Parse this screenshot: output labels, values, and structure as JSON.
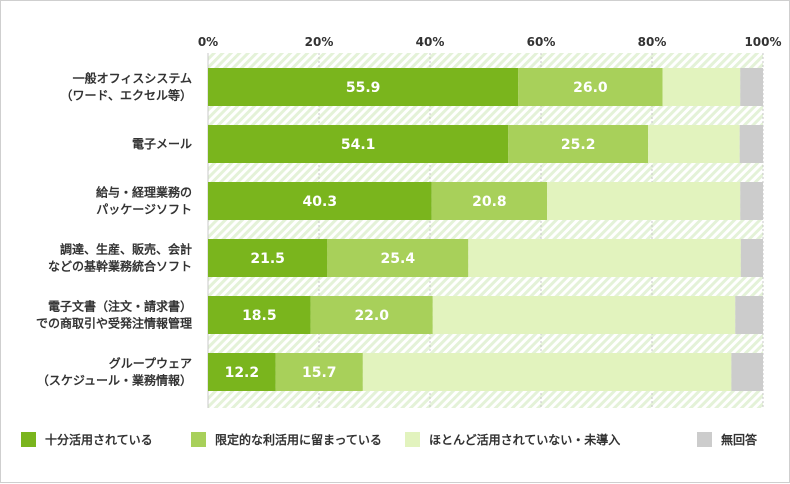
{
  "chart_data": {
    "type": "bar",
    "orientation": "horizontal",
    "stacked": true,
    "title": "",
    "xlabel": "",
    "ylabel": "",
    "xlim": [
      0,
      100
    ],
    "ticks": [
      {
        "value": 0,
        "label": "0%"
      },
      {
        "value": 20,
        "label": "20%"
      },
      {
        "value": 40,
        "label": "40%"
      },
      {
        "value": 60,
        "label": "60%"
      },
      {
        "value": 80,
        "label": "80%"
      },
      {
        "value": 100,
        "label": "100%"
      }
    ],
    "legend_position": "bottom",
    "categories": [
      [
        "一般オフィスシステム",
        "（ワード、エクセル等）"
      ],
      [
        "電子メール"
      ],
      [
        "給与・経理業務の",
        "パッケージソフト"
      ],
      [
        "調達、生産、販売、会計",
        "などの基幹業務統合ソフト"
      ],
      [
        "電子文書（注文・請求書）",
        "での商取引や受発注情報管理"
      ],
      [
        "グループウェア",
        "（スケジュール・業務情報）"
      ]
    ],
    "series": [
      {
        "name": "十分活用されている",
        "color": "#7ab51d",
        "label_color": "#ffffff",
        "values": [
          55.9,
          54.1,
          40.3,
          21.5,
          18.5,
          12.2
        ],
        "labels": [
          "55.9",
          "54.1",
          "40.3",
          "21.5",
          "18.5",
          "12.2"
        ]
      },
      {
        "name": "限定的な利活用に留まっている",
        "color": "#a8d05a",
        "label_color": "#ffffff",
        "values": [
          26.0,
          25.2,
          20.8,
          25.4,
          22.0,
          15.7
        ],
        "labels": [
          "26.0",
          "25.2",
          "20.8",
          "25.4",
          "22.0",
          "15.7"
        ]
      },
      {
        "name": "ほとんど活用されていない・未導入",
        "color": "#e2f3be",
        "label_color": "#333333",
        "values": [
          14.0,
          16.5,
          34.8,
          49.1,
          54.5,
          66.4
        ],
        "labels": [
          "",
          "",
          "",
          "",
          "",
          ""
        ]
      },
      {
        "name": "無回答",
        "color": "#cccccc",
        "label_color": "#333333",
        "values": [
          4.1,
          4.2,
          4.1,
          4.0,
          5.0,
          5.7
        ],
        "labels": [
          "",
          "",
          "",
          "",
          "",
          ""
        ]
      }
    ]
  }
}
